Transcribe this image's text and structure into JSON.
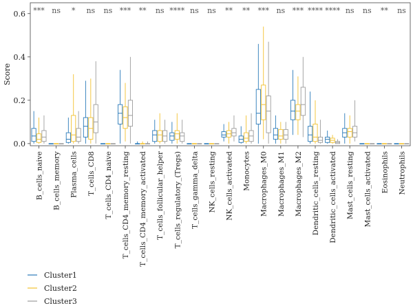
{
  "chart_data": {
    "type": "box",
    "ylabel": "Score",
    "ylim": [
      -0.01,
      0.65
    ],
    "yticks": [
      0.0,
      0.2,
      0.4,
      0.6
    ],
    "ytick_labels": [
      "0.0",
      "0.2",
      "0.4",
      "0.6"
    ],
    "grid": false,
    "legend_position": "bottom-left",
    "series": [
      {
        "name": "Cluster1",
        "color": "#2a7ab9"
      },
      {
        "name": "Cluster2",
        "color": "#f2c12e"
      },
      {
        "name": "Cluster3",
        "color": "#9b9b9b"
      }
    ],
    "categories": [
      "B_cells_naive",
      "B_cells_memory",
      "Plasma_cells",
      "T_cells_CD8",
      "T_cells_CD4_naive",
      "T_cells_CD4_memory_resting",
      "T_cells_CD4_memory_activated",
      "T_cells_follicular_helper",
      "T_cells_regulatory_(Tregs)",
      "T_cells_gamma_delta",
      "NK_cells_resting",
      "NK_cells_activated",
      "Monocytes",
      "Macrophages_M0",
      "Macrophages_M1",
      "Macrophages_M2",
      "Dendritic_cells_resting",
      "Dendritic_cells_activated",
      "Mast_cells_resting",
      "Mast_cells_activated",
      "Eosinophils",
      "Neutrophils"
    ],
    "significance": [
      "***",
      "ns",
      "*",
      "ns",
      "ns",
      "***",
      "**",
      "ns",
      "****",
      "ns",
      "ns",
      "**",
      "**",
      "***",
      "ns",
      "***",
      "****",
      "****",
      "ns",
      "ns",
      "**",
      "ns"
    ],
    "boxes": [
      [
        [
          0,
          0.01,
          0.035,
          0.07,
          0.15
        ],
        [
          0,
          0.005,
          0.02,
          0.045,
          0.12
        ],
        [
          0,
          0.01,
          0.03,
          0.06,
          0.13
        ]
      ],
      [
        [
          0,
          0,
          0,
          0,
          0
        ],
        [
          0,
          0,
          0,
          0,
          0
        ],
        [
          0,
          0,
          0,
          0,
          0
        ]
      ],
      [
        [
          0,
          0.005,
          0.02,
          0.05,
          0.12
        ],
        [
          0,
          0.01,
          0.04,
          0.13,
          0.32
        ],
        [
          0,
          0.01,
          0.03,
          0.07,
          0.15
        ]
      ],
      [
        [
          0,
          0.03,
          0.08,
          0.12,
          0.29
        ],
        [
          0,
          0.02,
          0.07,
          0.12,
          0.3
        ],
        [
          0,
          0.05,
          0.1,
          0.18,
          0.38
        ]
      ],
      [
        [
          0,
          0,
          0,
          0,
          0
        ],
        [
          0,
          0,
          0,
          0,
          0
        ],
        [
          0,
          0,
          0,
          0,
          0
        ]
      ],
      [
        [
          0,
          0.09,
          0.14,
          0.18,
          0.34
        ],
        [
          0.01,
          0.07,
          0.12,
          0.17,
          0.28
        ],
        [
          0,
          0.08,
          0.13,
          0.2,
          0.4
        ]
      ],
      [
        [
          0,
          0,
          0,
          0,
          0.01
        ],
        [
          0,
          0,
          0,
          0,
          0.01
        ],
        [
          0,
          0,
          0,
          0,
          0.01
        ]
      ],
      [
        [
          0,
          0.01,
          0.04,
          0.06,
          0.11
        ],
        [
          0,
          0.01,
          0.04,
          0.06,
          0.14
        ],
        [
          0,
          0.01,
          0.035,
          0.06,
          0.11
        ]
      ],
      [
        [
          0,
          0.015,
          0.035,
          0.05,
          0.1
        ],
        [
          0,
          0.02,
          0.045,
          0.06,
          0.14
        ],
        [
          0,
          0.01,
          0.035,
          0.05,
          0.11
        ]
      ],
      [
        [
          0,
          0,
          0,
          0,
          0
        ],
        [
          0,
          0,
          0,
          0,
          0
        ],
        [
          0,
          0,
          0,
          0,
          0
        ]
      ],
      [
        [
          0,
          0,
          0,
          0,
          0
        ],
        [
          0,
          0,
          0,
          0,
          0
        ],
        [
          0,
          0,
          0,
          0,
          0
        ]
      ],
      [
        [
          0.01,
          0.03,
          0.04,
          0.055,
          0.09
        ],
        [
          0,
          0.03,
          0.045,
          0.06,
          0.1
        ],
        [
          0.01,
          0.035,
          0.05,
          0.07,
          0.13
        ]
      ],
      [
        [
          0,
          0.005,
          0.02,
          0.035,
          0.08
        ],
        [
          0,
          0.01,
          0.025,
          0.05,
          0.13
        ],
        [
          0,
          0.01,
          0.035,
          0.06,
          0.14
        ]
      ],
      [
        [
          0,
          0.09,
          0.14,
          0.25,
          0.46
        ],
        [
          0.02,
          0.11,
          0.18,
          0.27,
          0.54
        ],
        [
          0,
          0.05,
          0.15,
          0.22,
          0.47
        ]
      ],
      [
        [
          0,
          0.02,
          0.04,
          0.07,
          0.13
        ],
        [
          0,
          0.02,
          0.035,
          0.065,
          0.1
        ],
        [
          0,
          0.02,
          0.04,
          0.065,
          0.1
        ]
      ],
      [
        [
          0.04,
          0.11,
          0.15,
          0.2,
          0.34
        ],
        [
          0.04,
          0.11,
          0.15,
          0.18,
          0.31
        ],
        [
          0.03,
          0.13,
          0.18,
          0.26,
          0.4
        ]
      ],
      [
        [
          0,
          0.01,
          0.04,
          0.08,
          0.24
        ],
        [
          0,
          0.01,
          0.03,
          0.09,
          0.2
        ],
        [
          0,
          0.005,
          0.015,
          0.03,
          0.11
        ]
      ],
      [
        [
          0,
          0.005,
          0.02,
          0.03,
          0.06
        ],
        [
          0,
          0.005,
          0.015,
          0.025,
          0.04
        ],
        [
          0,
          0,
          0.005,
          0.01,
          0.02
        ]
      ],
      [
        [
          0,
          0.03,
          0.05,
          0.07,
          0.14
        ],
        [
          0,
          0.03,
          0.055,
          0.07,
          0.13
        ],
        [
          0.01,
          0.03,
          0.05,
          0.08,
          0.2
        ]
      ],
      [
        [
          0,
          0,
          0,
          0,
          0
        ],
        [
          0,
          0,
          0,
          0,
          0
        ],
        [
          0,
          0,
          0,
          0,
          0
        ]
      ],
      [
        [
          0,
          0,
          0,
          0,
          0
        ],
        [
          0,
          0,
          0,
          0,
          0
        ],
        [
          0,
          0,
          0,
          0,
          0
        ]
      ],
      [
        [
          0,
          0,
          0,
          0,
          0
        ],
        [
          0,
          0,
          0,
          0,
          0
        ],
        [
          0,
          0,
          0,
          0,
          0
        ]
      ]
    ]
  }
}
